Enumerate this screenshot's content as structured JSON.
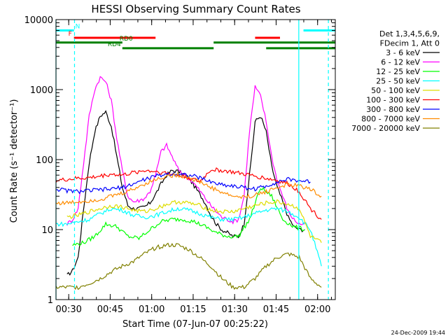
{
  "chart_data": {
    "type": "line",
    "title": "HESSI Observing Summary Count Rates",
    "xlabel": "Start Time (07-Jun-07 00:25:22)",
    "ylabel": "Count Rate (s⁻¹ detector⁻¹)",
    "x_unit": "minutes after 00:25:22",
    "xlim": [
      0,
      101
    ],
    "ylim": [
      1,
      10000
    ],
    "yscale": "log",
    "x_ticks": [
      {
        "v": 4.6,
        "label": "00:30"
      },
      {
        "v": 19.6,
        "label": "00:45"
      },
      {
        "v": 34.6,
        "label": "01:00"
      },
      {
        "v": 49.6,
        "label": "01:15"
      },
      {
        "v": 64.6,
        "label": "01:30"
      },
      {
        "v": 79.6,
        "label": "01:45"
      },
      {
        "v": 94.6,
        "label": "02:00"
      }
    ],
    "y_ticks": [
      {
        "v": 1,
        "label": "1"
      },
      {
        "v": 10,
        "label": "10"
      },
      {
        "v": 100,
        "label": "100"
      },
      {
        "v": 1000,
        "label": "1000"
      },
      {
        "v": 10000,
        "label": "10000"
      }
    ],
    "legend_header": [
      "Det 1,3,4,5,6,9,",
      "FDecim 1, Att 0"
    ],
    "legend_position": "right",
    "footer": "24-Dec-2009 19:44",
    "series": [
      {
        "name": "3 - 6 keV",
        "color": "#000000",
        "x": [
          4,
          6,
          8,
          10,
          12,
          14,
          16,
          18,
          20,
          22,
          24,
          26,
          28,
          30,
          32,
          34,
          36,
          38,
          40,
          42,
          44,
          46,
          48,
          50,
          52,
          54,
          56,
          58,
          60,
          62,
          64,
          66,
          68,
          70,
          72,
          74,
          76,
          78,
          80,
          82,
          84,
          86,
          88,
          90
        ],
        "y": [
          2.2,
          2.6,
          4,
          20,
          90,
          250,
          420,
          480,
          300,
          110,
          40,
          22,
          20,
          20,
          21,
          24,
          32,
          45,
          60,
          70,
          68,
          62,
          55,
          42,
          32,
          24,
          16,
          12,
          10,
          9,
          8,
          8,
          12,
          60,
          350,
          420,
          250,
          80,
          40,
          25,
          15,
          11,
          10,
          10
        ]
      },
      {
        "name": "6 - 12 keV",
        "color": "#ff00ff",
        "x": [
          4,
          6,
          8,
          10,
          12,
          14,
          16,
          18,
          20,
          22,
          24,
          26,
          28,
          30,
          32,
          34,
          36,
          38,
          40,
          42,
          44,
          46,
          48,
          50,
          52,
          54,
          56,
          58,
          60,
          62,
          64,
          66,
          68,
          70,
          72,
          74,
          76,
          78,
          80,
          82,
          84,
          86,
          88,
          90
        ],
        "y": [
          12,
          14,
          20,
          90,
          420,
          1000,
          1500,
          1300,
          700,
          200,
          70,
          30,
          25,
          26,
          28,
          35,
          60,
          130,
          160,
          110,
          75,
          62,
          55,
          45,
          36,
          28,
          22,
          18,
          15,
          14,
          13,
          14,
          30,
          260,
          1100,
          800,
          350,
          110,
          50,
          30,
          18,
          14,
          12,
          12
        ]
      },
      {
        "name": "12 - 25 keV",
        "color": "#00ff00",
        "x": [
          6,
          10,
          14,
          18,
          22,
          26,
          30,
          34,
          38,
          42,
          46,
          50,
          54,
          58,
          62,
          66,
          70,
          74,
          78,
          82,
          86,
          90
        ],
        "y": [
          6,
          6.5,
          8,
          12,
          11,
          8,
          7.5,
          10,
          13,
          14,
          14,
          13,
          11,
          9,
          8,
          8,
          14,
          40,
          30,
          14,
          11,
          10
        ]
      },
      {
        "name": "25 - 50 keV",
        "color": "#00ffff",
        "x": [
          0,
          4,
          8,
          12,
          16,
          20,
          24,
          28,
          32,
          36,
          40,
          44,
          48,
          52,
          56,
          60,
          64,
          68,
          72,
          76,
          80,
          84,
          88,
          92,
          96
        ],
        "y": [
          12,
          12,
          13,
          14,
          17,
          20,
          19,
          16,
          15,
          16,
          18,
          20,
          19,
          17,
          15,
          14,
          14,
          15,
          17,
          19,
          20,
          18,
          15,
          10,
          3
        ]
      },
      {
        "name": "50 - 100 keV",
        "color": "#dddd00",
        "x": [
          4,
          8,
          12,
          16,
          20,
          24,
          28,
          32,
          36,
          40,
          44,
          48,
          52,
          56,
          60,
          64,
          68,
          72,
          76,
          80,
          84,
          88,
          92,
          96
        ],
        "y": [
          15,
          16,
          18,
          20,
          22,
          21,
          19,
          18,
          20,
          23,
          25,
          24,
          22,
          19,
          18,
          18,
          20,
          22,
          24,
          25,
          23,
          20,
          8,
          6.5
        ]
      },
      {
        "name": "100 - 300 keV",
        "color": "#ff0000",
        "x": [
          0,
          4,
          8,
          12,
          16,
          20,
          24,
          28,
          32,
          36,
          40,
          44,
          48,
          52,
          56,
          60,
          64,
          68,
          72,
          76,
          80,
          84,
          88,
          92,
          96
        ],
        "y": [
          50,
          52,
          54,
          55,
          58,
          62,
          60,
          65,
          70,
          68,
          64,
          60,
          55,
          48,
          72,
          70,
          66,
          62,
          58,
          54,
          50,
          45,
          35,
          20,
          14
        ]
      },
      {
        "name": "300 - 800 keV",
        "color": "#0000ff",
        "x": [
          0,
          4,
          8,
          12,
          16,
          20,
          24,
          28,
          32,
          36,
          40,
          44,
          48,
          52,
          56,
          60,
          64,
          68,
          72,
          76,
          80,
          84,
          88,
          92
        ],
        "y": [
          38,
          36,
          35,
          36,
          37,
          38,
          40,
          45,
          52,
          58,
          62,
          63,
          60,
          55,
          48,
          44,
          42,
          40,
          38,
          42,
          48,
          52,
          50,
          48
        ]
      },
      {
        "name": "800 - 7000 keV",
        "color": "#ff8c00",
        "x": [
          0,
          4,
          8,
          12,
          16,
          20,
          24,
          28,
          32,
          36,
          40,
          44,
          48,
          52,
          56,
          60,
          64,
          68,
          72,
          76,
          80,
          84,
          88,
          92,
          96
        ],
        "y": [
          24,
          24,
          25,
          26,
          27,
          30,
          33,
          38,
          45,
          52,
          58,
          60,
          56,
          48,
          40,
          34,
          30,
          29,
          31,
          35,
          40,
          44,
          42,
          38,
          30
        ]
      },
      {
        "name": "7000 - 20000 keV",
        "color": "#808000",
        "x": [
          0,
          4,
          8,
          12,
          16,
          20,
          24,
          28,
          32,
          36,
          40,
          44,
          48,
          52,
          56,
          60,
          64,
          68,
          72,
          76,
          80,
          84,
          88,
          92,
          96
        ],
        "y": [
          1.5,
          1.5,
          1.5,
          1.7,
          2,
          2.5,
          3,
          3.5,
          4.5,
          5.5,
          6,
          6,
          5.2,
          4,
          3,
          2,
          1.5,
          1.5,
          2,
          3,
          4,
          4.5,
          4,
          2,
          1.5
        ]
      }
    ],
    "annotations": [
      {
        "label": "N",
        "color": "#00ffff",
        "segments": [
          [
            0,
            6.5
          ],
          [
            89.5,
            101
          ]
        ],
        "level": 7000
      },
      {
        "label": "F",
        "color": "#ff0000",
        "segments": [
          [
            6.5,
            36
          ],
          [
            72,
            81
          ]
        ],
        "level": 5500
      },
      {
        "label": "RD0",
        "color": "#008000",
        "segments": [
          [
            0,
            24
          ],
          [
            57,
            101
          ]
        ],
        "level": 4700
      },
      {
        "label": "RD4",
        "color": "#008000",
        "segments": [
          [
            24,
            57
          ],
          [
            76,
            101
          ]
        ],
        "level": 3900
      }
    ],
    "vertical_markers": [
      {
        "x": 0,
        "style": "solid",
        "color": "#00ffff"
      },
      {
        "x": 6.7,
        "style": "dashed",
        "color": "#00ffff"
      },
      {
        "x": 87.8,
        "style": "solid",
        "color": "#00ffff"
      },
      {
        "x": 98.5,
        "style": "dashed",
        "color": "#00ffff"
      }
    ]
  }
}
